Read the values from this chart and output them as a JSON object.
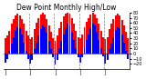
{
  "title": "Dew Point Monthly High/Low",
  "ylabel": "",
  "background_color": "#ffffff",
  "plot_bg": "#ffffff",
  "ylim": [
    -30,
    80
  ],
  "yticks": [
    -20,
    -10,
    0,
    10,
    20,
    30,
    40,
    50,
    60,
    70,
    80
  ],
  "months": [
    "J",
    "F",
    "M",
    "A",
    "M",
    "J",
    "J",
    "A",
    "S",
    "O",
    "N",
    "D",
    "J",
    "F",
    "M",
    "A",
    "M",
    "J",
    "J",
    "A",
    "S",
    "O",
    "N",
    "D",
    "J",
    "F",
    "M",
    "A",
    "M",
    "J",
    "J",
    "A",
    "S",
    "O",
    "N",
    "D",
    "J",
    "F",
    "M",
    "A",
    "M",
    "J",
    "J",
    "A",
    "S",
    "O",
    "N",
    "D",
    "J",
    "F",
    "M",
    "A",
    "M",
    "J",
    "J",
    "A",
    "S",
    "O",
    "N",
    "D"
  ],
  "highs": [
    30,
    35,
    45,
    58,
    68,
    74,
    78,
    75,
    68,
    58,
    45,
    35,
    28,
    32,
    48,
    60,
    70,
    76,
    80,
    76,
    68,
    55,
    42,
    30,
    25,
    35,
    50,
    62,
    72,
    78,
    80,
    78,
    70,
    58,
    44,
    32,
    30,
    38,
    52,
    62,
    70,
    76,
    80,
    76,
    70,
    58,
    44,
    32,
    28,
    32,
    48,
    58,
    68,
    74,
    78,
    75,
    66,
    55,
    42,
    30
  ],
  "lows": [
    -18,
    -10,
    5,
    20,
    32,
    45,
    52,
    50,
    38,
    22,
    5,
    -10,
    -20,
    -12,
    8,
    22,
    35,
    48,
    55,
    52,
    40,
    24,
    8,
    -8,
    -22,
    -12,
    10,
    25,
    38,
    50,
    58,
    55,
    42,
    26,
    10,
    -8,
    -18,
    -8,
    12,
    26,
    38,
    50,
    58,
    55,
    42,
    26,
    10,
    -6,
    -20,
    -12,
    8,
    20,
    32,
    46,
    52,
    50,
    38,
    22,
    5,
    -10
  ],
  "dashed_lines": [
    12,
    24,
    36,
    48
  ],
  "high_color": "#ff0000",
  "low_color": "#0000ff",
  "bar_width": 0.85,
  "title_fontsize": 5.5,
  "tick_fontsize": 3.5,
  "label_fontsize": 3.5
}
